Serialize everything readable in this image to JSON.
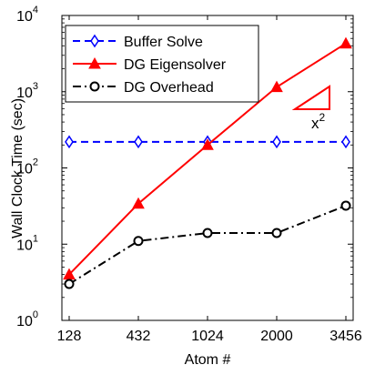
{
  "chart_data": {
    "type": "line",
    "xlabel": "Atom #",
    "ylabel": "Wall Clock Time (sec)",
    "x_scale": "categorical",
    "y_scale": "log",
    "ylim": [
      1,
      10000
    ],
    "categories": [
      "128",
      "432",
      "1024",
      "2000",
      "3456"
    ],
    "y_ticks": [
      {
        "base": "10",
        "exp": "0",
        "value": 1
      },
      {
        "base": "10",
        "exp": "1",
        "value": 10
      },
      {
        "base": "10",
        "exp": "2",
        "value": 100
      },
      {
        "base": "10",
        "exp": "3",
        "value": 1000
      },
      {
        "base": "10",
        "exp": "4",
        "value": 10000
      }
    ],
    "grid": false,
    "legend_position": "top-left",
    "series": [
      {
        "name": "Buffer Solve",
        "values": [
          220,
          220,
          220,
          220,
          220
        ],
        "color": "#0000ff",
        "line": "dashed",
        "marker": "diamond"
      },
      {
        "name": "DG Eigensolver",
        "values": [
          4,
          34,
          200,
          1150,
          4300
        ],
        "color": "#ff0000",
        "line": "solid",
        "marker": "triangle"
      },
      {
        "name": "DG Overhead",
        "values": [
          3,
          11,
          14,
          14,
          32
        ],
        "color": "#000000",
        "line": "dashdot",
        "marker": "circle"
      }
    ],
    "annotation": {
      "base": "x",
      "exp": "2",
      "shape": "slope-triangle",
      "color": "#ff0000"
    }
  }
}
